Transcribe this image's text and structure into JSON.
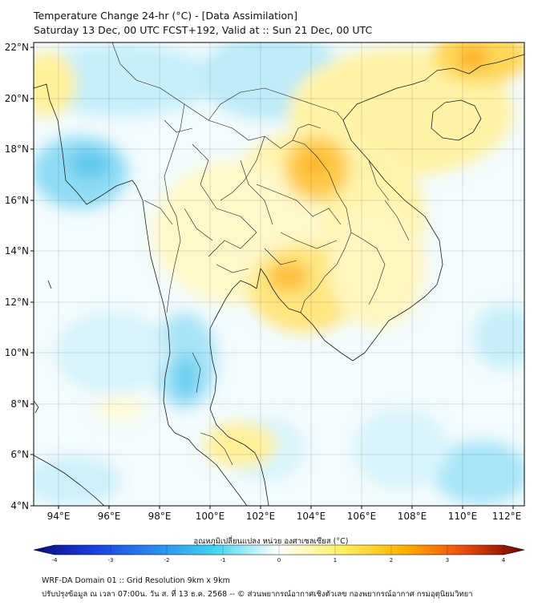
{
  "title_line1": "Temperature Change 24-hr (°C) - [Data Assimilation]",
  "title_line2": "Saturday 13 Dec, 00 UTC FCST+192, Valid at :: Sun 21 Dec, 00 UTC",
  "lat_labels": [
    "22°N",
    "20°N",
    "18°N",
    "16°N",
    "14°N",
    "12°N",
    "10°N",
    "8°N",
    "6°N",
    "4°N"
  ],
  "lon_labels": [
    "94°E",
    "96°E",
    "98°E",
    "100°E",
    "102°E",
    "104°E",
    "106°E",
    "108°E",
    "110°E",
    "112°E"
  ],
  "colorbar": {
    "label": "อุณหภูมิเปลี่ยนแปลง หน่วย องศาเซลเซียส (°C)",
    "ticks": [
      "-4",
      "-3",
      "-2",
      "-1",
      "0",
      "1",
      "2",
      "3",
      "4"
    ],
    "min": -4,
    "max": 4
  },
  "footer_line1": "WRF-DA Domain 01 :: Grid Resolution 9km x 9km",
  "footer_line2": "ปรับปรุงข้อมูล ณ เวลา 07:00น. วัน ส. ที่ 13 ธ.ค. 2568 -- © ส่วนพยากรณ์อากาศเชิงตัวเลข กองพยากรณ์อากาศ กรมอุตุนิยมวิทยา"
}
